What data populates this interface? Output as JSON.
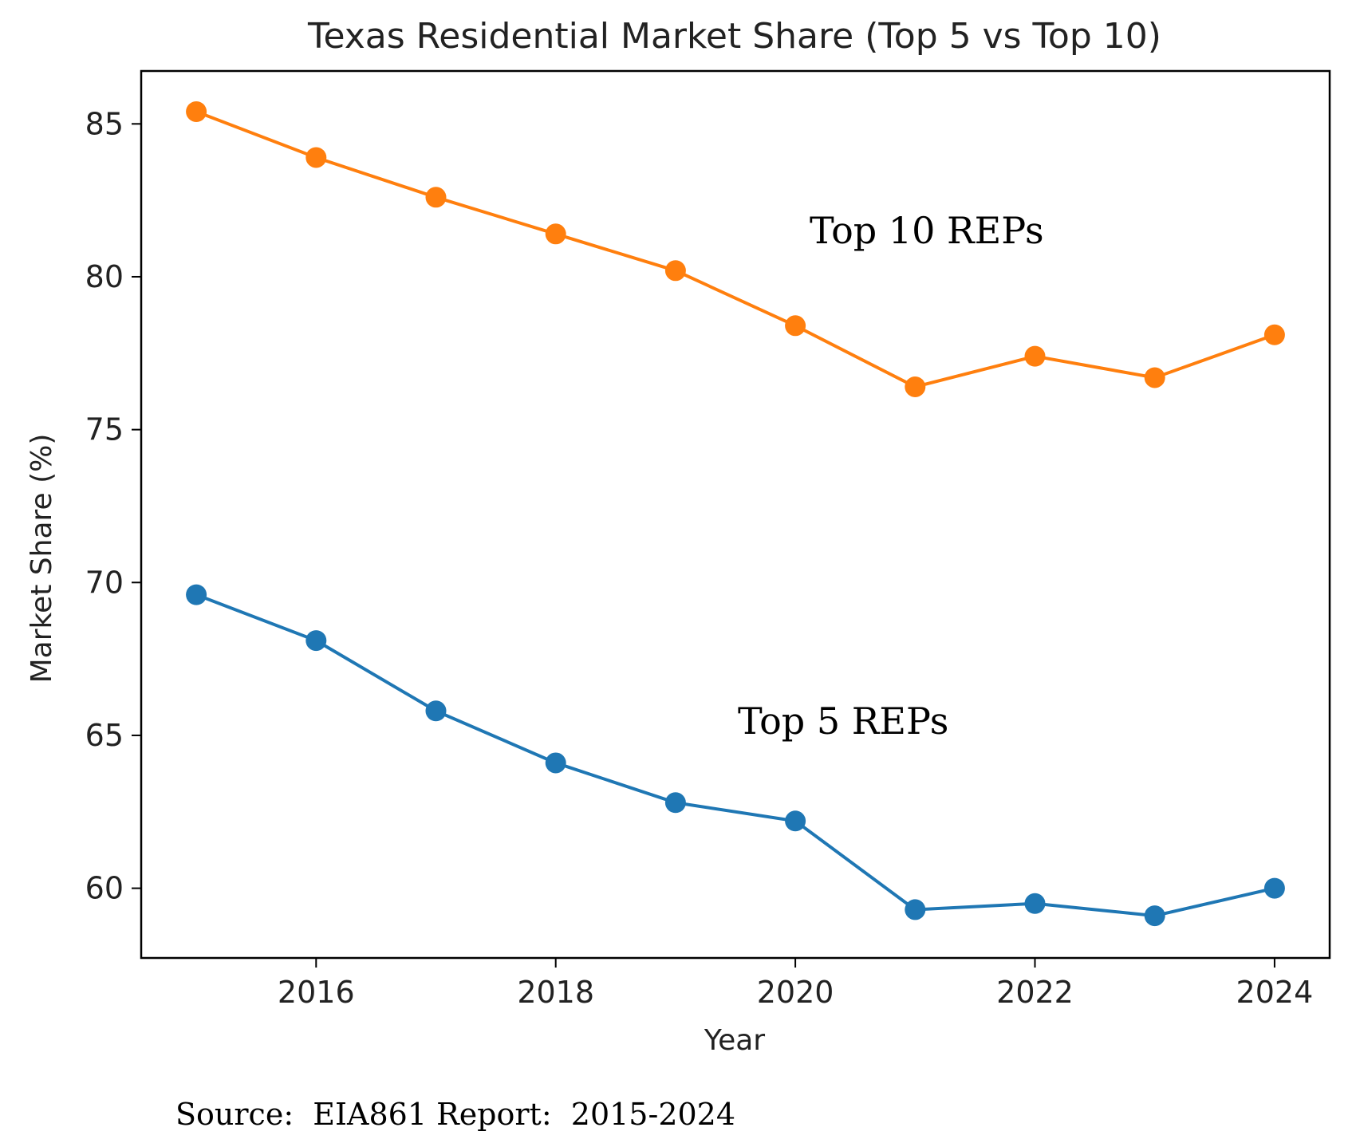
{
  "chart_data": {
    "type": "line",
    "title": "Texas Residential Market Share (Top 5 vs Top 10)",
    "xlabel": "Year",
    "ylabel": "Market Share (%)",
    "x": [
      2015,
      2016,
      2017,
      2018,
      2019,
      2020,
      2021,
      2022,
      2023,
      2024
    ],
    "xlim": [
      2014.54,
      2024.46
    ],
    "ylim": [
      57.72,
      86.73
    ],
    "xticks": [
      "2016",
      "2018",
      "2020",
      "2022",
      "2024"
    ],
    "yticks": [
      "60",
      "65",
      "70",
      "75",
      "80",
      "85"
    ],
    "grid": false,
    "series": [
      {
        "name": "Top 10 REPs",
        "color": "#ff7f0e",
        "marker": "circle",
        "values": [
          85.4,
          83.9,
          82.6,
          81.4,
          80.2,
          78.4,
          76.4,
          77.4,
          76.7,
          78.1
        ]
      },
      {
        "name": "Top 5 REPs",
        "color": "#1f77b4",
        "marker": "circle",
        "values": [
          69.6,
          68.1,
          65.8,
          64.1,
          62.8,
          62.2,
          59.3,
          59.5,
          59.1,
          60.0
        ]
      }
    ],
    "annotations": [
      "Top 10 REPs",
      "Top 5 REPs"
    ],
    "source": "Source:  EIA861 Report:  2015-2024"
  }
}
